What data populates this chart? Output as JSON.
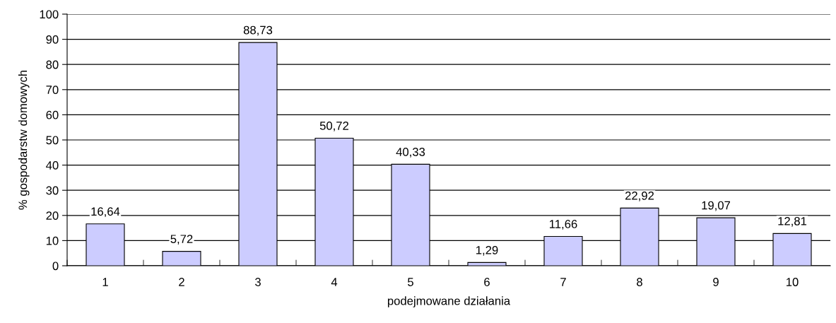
{
  "chart_data": {
    "type": "bar",
    "xlabel": "podejmowane działania",
    "ylabel": "% gospodarstw domowych",
    "categories": [
      "1",
      "2",
      "3",
      "4",
      "5",
      "6",
      "7",
      "8",
      "9",
      "10"
    ],
    "values": [
      16.64,
      5.72,
      88.73,
      50.72,
      40.33,
      1.29,
      11.66,
      22.92,
      19.07,
      12.81
    ],
    "value_labels": [
      "16,64",
      "5,72",
      "88,73",
      "50,72",
      "40,33",
      "1,29",
      "11,66",
      "22,92",
      "19,07",
      "12,81"
    ],
    "color": "#ccccff",
    "ylim": [
      0,
      100
    ],
    "yticks": [
      0,
      10,
      20,
      30,
      40,
      50,
      60,
      70,
      80,
      90,
      100
    ],
    "grid": "y",
    "legend": false
  }
}
